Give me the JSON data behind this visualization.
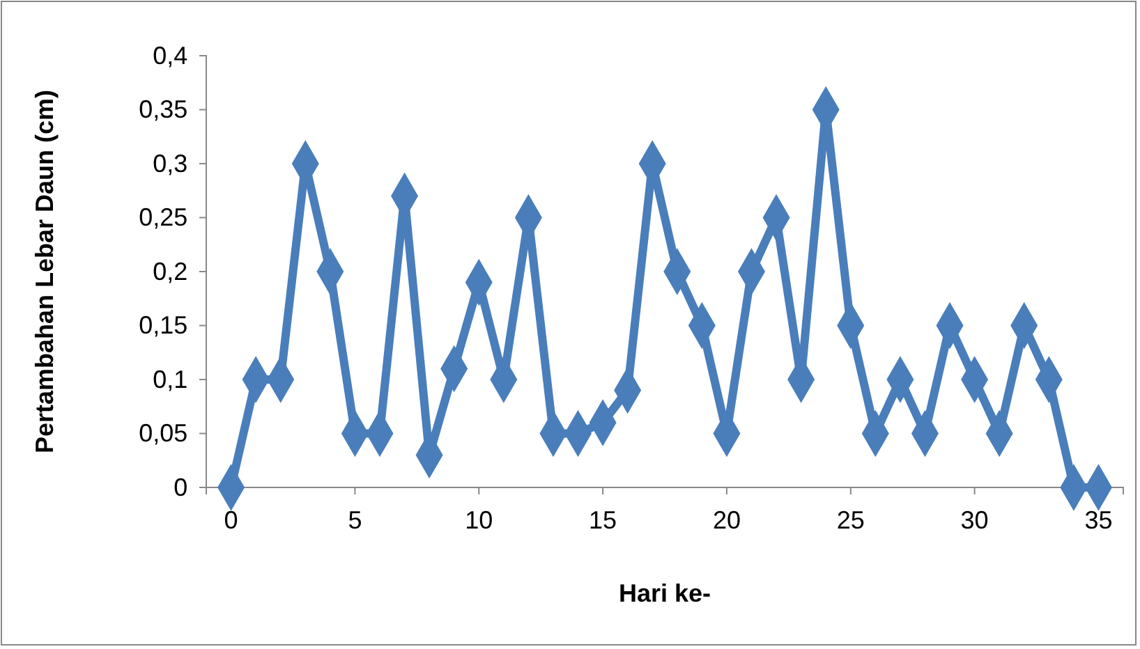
{
  "chart_data": {
    "type": "line",
    "xlabel": "Hari ke-",
    "ylabel": "Pertambahan Lebar Daun (cm)",
    "x": [
      0,
      1,
      2,
      3,
      4,
      5,
      6,
      7,
      8,
      9,
      10,
      11,
      12,
      13,
      14,
      15,
      16,
      17,
      18,
      19,
      20,
      21,
      22,
      23,
      24,
      25,
      26,
      27,
      28,
      29,
      30,
      31,
      32,
      33,
      34,
      35
    ],
    "series": [
      {
        "color": "#4a7ebb",
        "values": [
          0,
          0.1,
          0.1,
          0.3,
          0.2,
          0.05,
          0.05,
          0.27,
          0.03,
          0.11,
          0.19,
          0.1,
          0.25,
          0.05,
          0.05,
          0.06,
          0.09,
          0.3,
          0.2,
          0.15,
          0.05,
          0.2,
          0.25,
          0.1,
          0.35,
          0.15,
          0.05,
          0.1,
          0.05,
          0.15,
          0.1,
          0.05,
          0.15,
          0.1,
          0,
          0
        ]
      }
    ],
    "xlim": [
      -1,
      36
    ],
    "xticks": [
      0,
      5,
      10,
      15,
      20,
      25,
      30,
      35
    ],
    "ylim": [
      0,
      0.4
    ],
    "yticks": [
      0,
      {
        "value": 0.05,
        "label": "0,05"
      },
      {
        "value": 0.1,
        "label": "0,1"
      },
      {
        "value": 0.15,
        "label": "0,15"
      },
      {
        "value": 0.2,
        "label": "0,2"
      },
      {
        "value": 0.25,
        "label": "0,25"
      },
      {
        "value": 0.3,
        "label": "0,3"
      },
      {
        "value": 0.35,
        "label": "0,35"
      },
      {
        "value": 0.4,
        "label": "0,4"
      }
    ],
    "grid": false,
    "marker": "diamond",
    "line_style": "solid"
  }
}
